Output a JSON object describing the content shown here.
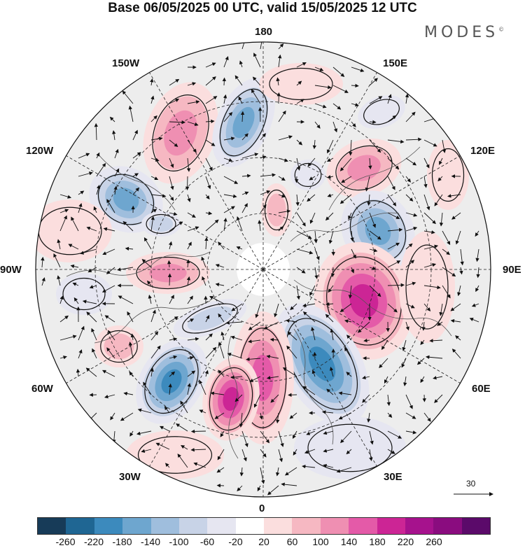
{
  "header": {
    "title": "Base 06/05/2025 00 UTC, valid 15/05/2025 12 UTC",
    "brand": "MODES"
  },
  "map": {
    "projection": "north-polar-stereographic",
    "longitude_labels": {
      "top": "180",
      "top_right": "150E",
      "upper_right": "120E",
      "right": "90E",
      "lower_right": "60E",
      "bottom_right": "30E",
      "bottom": "0",
      "bottom_left": "30W",
      "lower_left": "60W",
      "left": "90W",
      "upper_left": "120W",
      "top_left": "150W"
    },
    "vector_scale_label": "30"
  },
  "colorbar": {
    "colors": [
      "#173b58",
      "#1f6693",
      "#3c8abd",
      "#6ea6cf",
      "#9fbedd",
      "#c8d3e7",
      "#e6e6f1",
      "#ffffff",
      "#fbdede",
      "#f6b8c2",
      "#ef8fb2",
      "#e45aa8",
      "#cc2595",
      "#a6128d",
      "#8a0c7f",
      "#5b0a6a"
    ],
    "tick_labels": [
      "-260",
      "-220",
      "-180",
      "-140",
      "-100",
      "-60",
      "-20",
      "20",
      "60",
      "100",
      "140",
      "180",
      "220",
      "260"
    ]
  }
}
